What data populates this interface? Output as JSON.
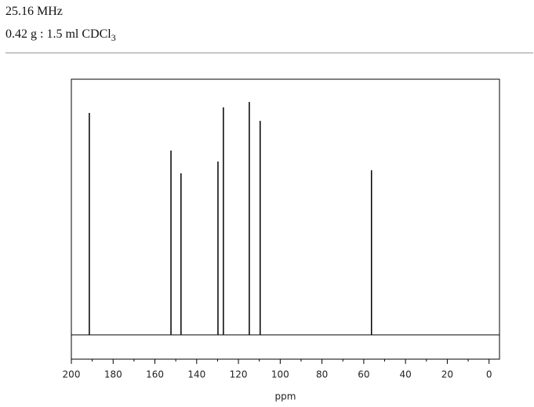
{
  "header": {
    "frequency": "25.16 MHz",
    "sample": "0.42 g : 1.5 ml CDCl",
    "sample_subscript": "3"
  },
  "chart_data": {
    "type": "stick",
    "x_label": "ppm",
    "x": [
      191.4,
      152.3,
      147.5,
      129.8,
      127.2,
      114.8,
      109.6,
      56.3
    ],
    "values": [
      86.8,
      72.1,
      63.2,
      67.8,
      89.0,
      91.1,
      83.7,
      64.4
    ],
    "color": "#000000",
    "xlim": [
      200,
      -5
    ],
    "ylim": [
      -9.5,
      100
    ],
    "xticks": [
      200,
      180,
      160,
      140,
      120,
      100,
      80,
      60,
      40,
      20,
      0
    ],
    "xminor_ticks": [
      190,
      170,
      150,
      130,
      110,
      90,
      70,
      50,
      30,
      10
    ]
  }
}
